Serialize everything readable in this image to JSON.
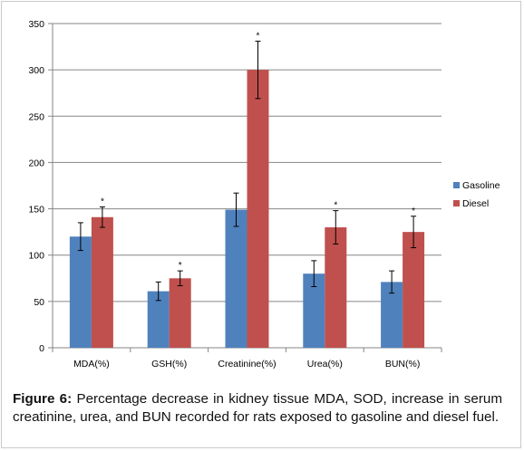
{
  "chart_data": {
    "type": "bar",
    "categories": [
      "MDA(%)",
      "GSH(%)",
      "Creatinine(%)",
      "Urea(%)",
      "BUN(%)"
    ],
    "series": [
      {
        "name": "Gasoline",
        "color": "#4f81bd",
        "values": [
          120,
          61,
          149,
          80,
          71
        ],
        "errors": [
          15,
          10,
          18,
          14,
          12
        ]
      },
      {
        "name": "Diesel",
        "color": "#c0504d",
        "values": [
          141,
          75,
          300,
          130,
          125
        ],
        "errors": [
          11,
          8,
          31,
          18,
          17
        ]
      }
    ],
    "significance_marker": "*",
    "significant": [
      true,
      true,
      true,
      true,
      true
    ],
    "ylim": [
      0,
      350
    ],
    "yticks": [
      "0",
      "50",
      "100",
      "150",
      "200",
      "250",
      "300",
      "350"
    ],
    "grid": true,
    "legend_position": "right"
  },
  "caption": {
    "label": "Figure 6:",
    "text": "Percentage decrease in kidney tissue MDA, SOD, increase in serum creatinine, urea, and BUN recorded for rats exposed to gasoline and diesel fuel."
  }
}
